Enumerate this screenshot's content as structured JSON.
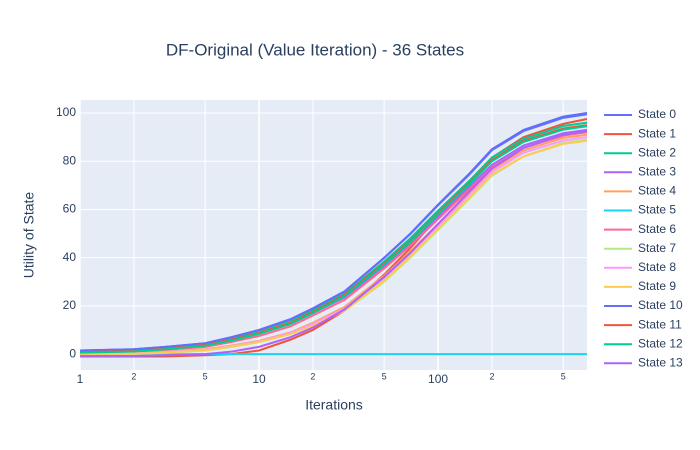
{
  "chart_data": {
    "type": "line",
    "title": "DF-Original (Value Iteration) - 36 States",
    "x_label": "Iterations",
    "y_label": "Utility of State",
    "xscale": "log",
    "grid": true,
    "legend": "right",
    "xlim": [
      1,
      679
    ],
    "ylim": [
      -6.6,
      105.4
    ],
    "xticks": [
      1,
      2,
      5,
      10,
      {
        "value": 20,
        "label": "2"
      },
      {
        "value": 50,
        "label": "5"
      },
      100,
      {
        "value": 200,
        "label": "2"
      },
      {
        "value": 500,
        "label": "5"
      }
    ],
    "yticks": [
      0,
      20,
      40,
      60,
      80,
      100
    ],
    "x": [
      1,
      2,
      3,
      5,
      7,
      10,
      15,
      20,
      30,
      50,
      70,
      100,
      150,
      200,
      300,
      500,
      679
    ],
    "series": [
      {
        "name": "State 0",
        "color": "#636efa",
        "values": [
          1.5,
          2,
          3,
          4.5,
          7,
          10,
          14.5,
          19,
          26,
          40,
          50,
          62,
          75,
          85,
          93,
          98.5,
          100
        ]
      },
      {
        "name": "State 1",
        "color": "#EF553B",
        "values": [
          -1,
          -1,
          -1,
          -0.5,
          0,
          1.5,
          6,
          10,
          18,
          33,
          44,
          57,
          71,
          81.5,
          90,
          95.5,
          97.5
        ]
      },
      {
        "name": "State 2",
        "color": "#00cc96",
        "values": [
          1.4,
          1.9,
          2.8,
          4.3,
          6.7,
          9.6,
          13.9,
          18.2,
          25,
          38.4,
          48,
          59.5,
          72,
          81.6,
          89.3,
          94.6,
          96
        ]
      },
      {
        "name": "State 3",
        "color": "#ab63fa",
        "values": [
          1,
          1.5,
          2.5,
          4,
          6,
          8.5,
          12.5,
          17,
          23.5,
          36.5,
          46,
          57,
          69.5,
          78.5,
          86.5,
          91.6,
          93
        ]
      },
      {
        "name": "State 4",
        "color": "#FFA15A",
        "values": [
          0,
          0.5,
          1,
          2,
          3.5,
          5.5,
          9,
          13,
          19.5,
          32.5,
          42.5,
          54,
          67,
          76.5,
          84.5,
          89.7,
          91
        ]
      },
      {
        "name": "State 5",
        "color": "#19d3f3",
        "values": [
          0,
          0,
          0,
          0,
          0,
          0,
          0,
          0,
          0,
          0,
          0,
          0,
          0,
          0,
          0,
          0,
          0
        ]
      },
      {
        "name": "State 6",
        "color": "#FF6692",
        "values": [
          0.5,
          1,
          1.8,
          3,
          5,
          7.5,
          11.5,
          16,
          22.5,
          35.5,
          45,
          56,
          68.5,
          77.5,
          85.5,
          90.6,
          92
        ]
      },
      {
        "name": "State 7",
        "color": "#B6E880",
        "values": [
          -0.5,
          0,
          0.5,
          1.5,
          3,
          5,
          8.5,
          12,
          18,
          30,
          40,
          51.5,
          64.5,
          74,
          82,
          87.6,
          89
        ]
      },
      {
        "name": "State 8",
        "color": "#FF97FF",
        "values": [
          0,
          0.3,
          0.8,
          1.8,
          3.3,
          5.3,
          8.8,
          12.5,
          18.8,
          31.5,
          41.5,
          53,
          66,
          75.5,
          83.5,
          88.6,
          90
        ]
      },
      {
        "name": "State 9",
        "color": "#FECB52",
        "values": [
          -0.3,
          0.2,
          0.6,
          1.6,
          3.1,
          5,
          8.3,
          11.8,
          18,
          30.5,
          40.5,
          52,
          65,
          74.5,
          82,
          87.2,
          88.5
        ]
      },
      {
        "name": "State 10",
        "color": "#636efa",
        "values": [
          1.5,
          2,
          3,
          4.5,
          7,
          10,
          14.4,
          18.9,
          25.9,
          39.8,
          49.8,
          61.7,
          74.6,
          84.6,
          92.5,
          98,
          99.5
        ]
      },
      {
        "name": "State 11",
        "color": "#EF553B",
        "values": [
          0.8,
          1.3,
          2.2,
          3.8,
          6,
          8.8,
          13,
          17.5,
          24.5,
          37.5,
          47,
          58.5,
          71,
          80.5,
          88.5,
          93.6,
          95
        ]
      },
      {
        "name": "State 12",
        "color": "#00cc96",
        "values": [
          0.6,
          1.1,
          2,
          3.5,
          5.6,
          8.4,
          12.5,
          17,
          24,
          37,
          46.5,
          58,
          70.5,
          80,
          88,
          93.1,
          94.5
        ]
      },
      {
        "name": "State 13",
        "color": "#ab63fa",
        "values": [
          -0.8,
          -0.8,
          -0.5,
          0,
          1,
          3,
          7,
          11,
          18.5,
          32,
          42,
          54,
          67.5,
          77,
          85.5,
          91,
          92.5
        ]
      }
    ]
  }
}
